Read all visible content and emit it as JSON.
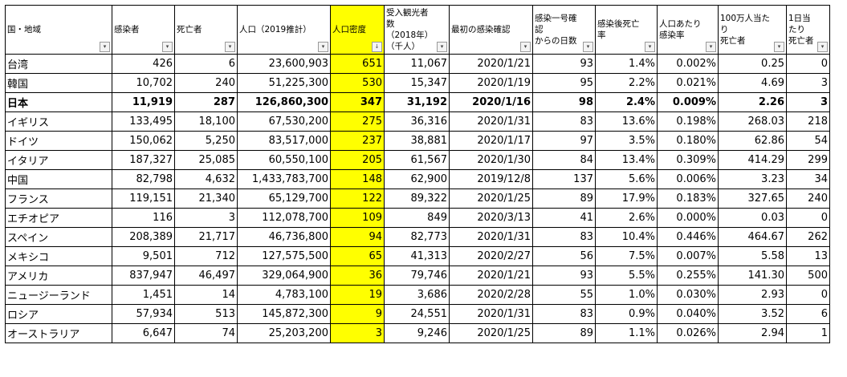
{
  "headers": [
    {
      "label": "国・地域",
      "filter": "▾"
    },
    {
      "label": "感染者",
      "filter": "▾"
    },
    {
      "label": "死亡者",
      "filter": "▾"
    },
    {
      "label": "人口（2019推計）",
      "filter": "▾"
    },
    {
      "label": "人口密度",
      "filter": "↓"
    },
    {
      "label": "受入観光者数\n（2018年）\n（千人）",
      "filter": "▾"
    },
    {
      "label": "最初の感染確認",
      "filter": "▾"
    },
    {
      "label": "感染一号確認\nからの日数",
      "filter": "▾"
    },
    {
      "label": "感染後死亡率",
      "filter": "▾"
    },
    {
      "label": "人口あたり\n感染率",
      "filter": "▾"
    },
    {
      "label": "100万人当たり\n死亡者",
      "filter": "▾"
    },
    {
      "label": "1日当たり\n死亡者",
      "filter": "▾"
    }
  ],
  "highlight_color": "#ffff00",
  "rows": [
    {
      "bold": false,
      "cells": [
        "台湾",
        "426",
        "6",
        "23,600,903",
        "651",
        "11,067",
        "2020/1/21",
        "93",
        "1.4%",
        "0.002%",
        "0.25",
        "0"
      ]
    },
    {
      "bold": false,
      "cells": [
        "韓国",
        "10,702",
        "240",
        "51,225,300",
        "530",
        "15,347",
        "2020/1/19",
        "95",
        "2.2%",
        "0.021%",
        "4.69",
        "3"
      ]
    },
    {
      "bold": true,
      "cells": [
        "日本",
        "11,919",
        "287",
        "126,860,300",
        "347",
        "31,192",
        "2020/1/16",
        "98",
        "2.4%",
        "0.009%",
        "2.26",
        "3"
      ]
    },
    {
      "bold": false,
      "cells": [
        "イギリス",
        "133,495",
        "18,100",
        "67,530,200",
        "275",
        "36,316",
        "2020/1/31",
        "83",
        "13.6%",
        "0.198%",
        "268.03",
        "218"
      ]
    },
    {
      "bold": false,
      "cells": [
        "ドイツ",
        "150,062",
        "5,250",
        "83,517,000",
        "237",
        "38,881",
        "2020/1/17",
        "97",
        "3.5%",
        "0.180%",
        "62.86",
        "54"
      ]
    },
    {
      "bold": false,
      "cells": [
        "イタリア",
        "187,327",
        "25,085",
        "60,550,100",
        "205",
        "61,567",
        "2020/1/30",
        "84",
        "13.4%",
        "0.309%",
        "414.29",
        "299"
      ]
    },
    {
      "bold": false,
      "cells": [
        "中国",
        "82,798",
        "4,632",
        "1,433,783,700",
        "148",
        "62,900",
        "2019/12/8",
        "137",
        "5.6%",
        "0.006%",
        "3.23",
        "34"
      ]
    },
    {
      "bold": false,
      "cells": [
        "フランス",
        "119,151",
        "21,340",
        "65,129,700",
        "122",
        "89,322",
        "2020/1/25",
        "89",
        "17.9%",
        "0.183%",
        "327.65",
        "240"
      ]
    },
    {
      "bold": false,
      "cells": [
        "エチオピア",
        "116",
        "3",
        "112,078,700",
        "109",
        "849",
        "2020/3/13",
        "41",
        "2.6%",
        "0.000%",
        "0.03",
        "0"
      ]
    },
    {
      "bold": false,
      "cells": [
        "スペイン",
        "208,389",
        "21,717",
        "46,736,800",
        "94",
        "82,773",
        "2020/1/31",
        "83",
        "10.4%",
        "0.446%",
        "464.67",
        "262"
      ]
    },
    {
      "bold": false,
      "cells": [
        "メキシコ",
        "9,501",
        "712",
        "127,575,500",
        "65",
        "41,313",
        "2020/2/27",
        "56",
        "7.5%",
        "0.007%",
        "5.58",
        "13"
      ]
    },
    {
      "bold": false,
      "cells": [
        "アメリカ",
        "837,947",
        "46,497",
        "329,064,900",
        "36",
        "79,746",
        "2020/1/21",
        "93",
        "5.5%",
        "0.255%",
        "141.30",
        "500"
      ]
    },
    {
      "bold": false,
      "cells": [
        "ニュージーランド",
        "1,451",
        "14",
        "4,783,100",
        "19",
        "3,686",
        "2020/2/28",
        "55",
        "1.0%",
        "0.030%",
        "2.93",
        "0"
      ]
    },
    {
      "bold": false,
      "cells": [
        "ロシア",
        "57,934",
        "513",
        "145,872,300",
        "9",
        "24,551",
        "2020/1/31",
        "83",
        "0.9%",
        "0.040%",
        "3.52",
        "6"
      ]
    },
    {
      "bold": false,
      "cells": [
        "オーストラリア",
        "6,647",
        "74",
        "25,203,200",
        "3",
        "9,246",
        "2020/1/25",
        "89",
        "1.1%",
        "0.026%",
        "2.94",
        "1"
      ]
    }
  ]
}
